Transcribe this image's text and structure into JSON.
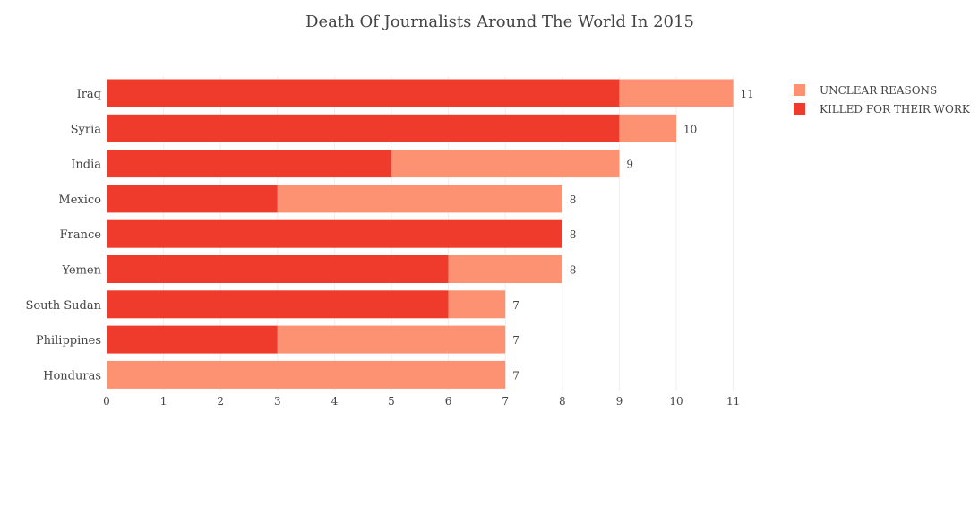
{
  "chart_data": {
    "type": "bar",
    "orientation": "horizontal",
    "stacked": true,
    "title": "Death Of Journalists Around The World In 2015",
    "xlabel": "",
    "ylabel": "",
    "categories": [
      "Iraq",
      "Syria",
      "India",
      "Mexico",
      "France",
      "Yemen",
      "South Sudan",
      "Philippines",
      "Honduras"
    ],
    "series": [
      {
        "name": "KILLED FOR THEIR WORK",
        "color": "#ef3b2c",
        "values": [
          9,
          9,
          5,
          3,
          8,
          6,
          6,
          3,
          0
        ]
      },
      {
        "name": "UNCLEAR REASONS",
        "color": "#fc9272",
        "values": [
          2,
          1,
          4,
          5,
          0,
          2,
          1,
          4,
          7
        ]
      }
    ],
    "totals": [
      "11",
      "10",
      "9",
      "8",
      "8",
      "8",
      "7",
      "7",
      "7"
    ],
    "xlim": [
      0,
      11
    ],
    "xticks": [
      "0",
      "1",
      "2",
      "3",
      "4",
      "5",
      "6",
      "7",
      "8",
      "9",
      "10",
      "11"
    ],
    "grid": true,
    "legend_position": "top-right",
    "legend": [
      {
        "name": "UNCLEAR REASONS",
        "color": "#fc9272"
      },
      {
        "name": "KILLED FOR THEIR WORK",
        "color": "#ef3b2c"
      }
    ]
  }
}
